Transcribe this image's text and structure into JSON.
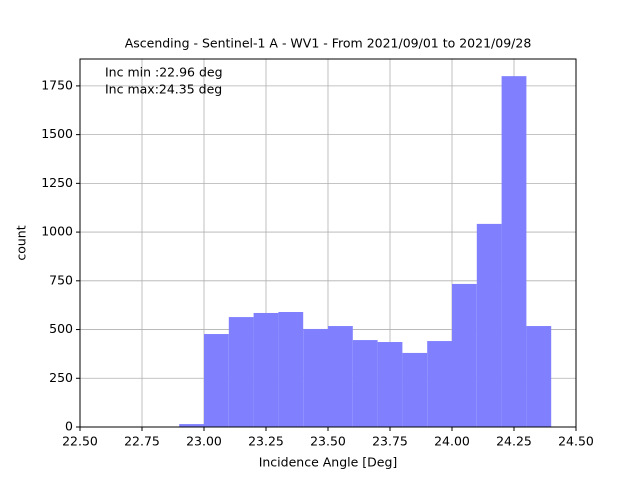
{
  "chart_data": {
    "type": "histogram",
    "title": "Ascending - Sentinel-1 A - WV1 - From 2021/09/01 to 2021/09/28",
    "xlabel": "Incidence Angle [Deg]",
    "ylabel": "count",
    "annotations": [
      "Inc min :22.96 deg",
      "Inc max:24.35 deg"
    ],
    "bins": [
      22.9,
      23.0,
      23.1,
      23.2,
      23.3,
      23.4,
      23.5,
      23.6,
      23.7,
      23.8,
      23.9,
      24.0,
      24.1,
      24.2,
      24.3,
      24.4
    ],
    "counts": [
      15,
      477,
      564,
      585,
      590,
      503,
      518,
      446,
      436,
      380,
      441,
      734,
      1042,
      1800,
      518
    ],
    "color": "#8080ff",
    "xlim": [
      22.5,
      24.5
    ],
    "xticks": [
      {
        "value": 22.5,
        "label": "22.50"
      },
      {
        "value": 22.75,
        "label": "22.75"
      },
      {
        "value": 23.0,
        "label": "23.00"
      },
      {
        "value": 23.25,
        "label": "23.25"
      },
      {
        "value": 23.5,
        "label": "23.50"
      },
      {
        "value": 23.75,
        "label": "23.75"
      },
      {
        "value": 24.0,
        "label": "24.00"
      },
      {
        "value": 24.25,
        "label": "24.25"
      },
      {
        "value": 24.5,
        "label": "24.50"
      }
    ],
    "ylim": [
      0,
      1888
    ],
    "yticks": [
      0,
      250,
      500,
      750,
      1000,
      1250,
      1500,
      1750
    ],
    "grid": true
  }
}
